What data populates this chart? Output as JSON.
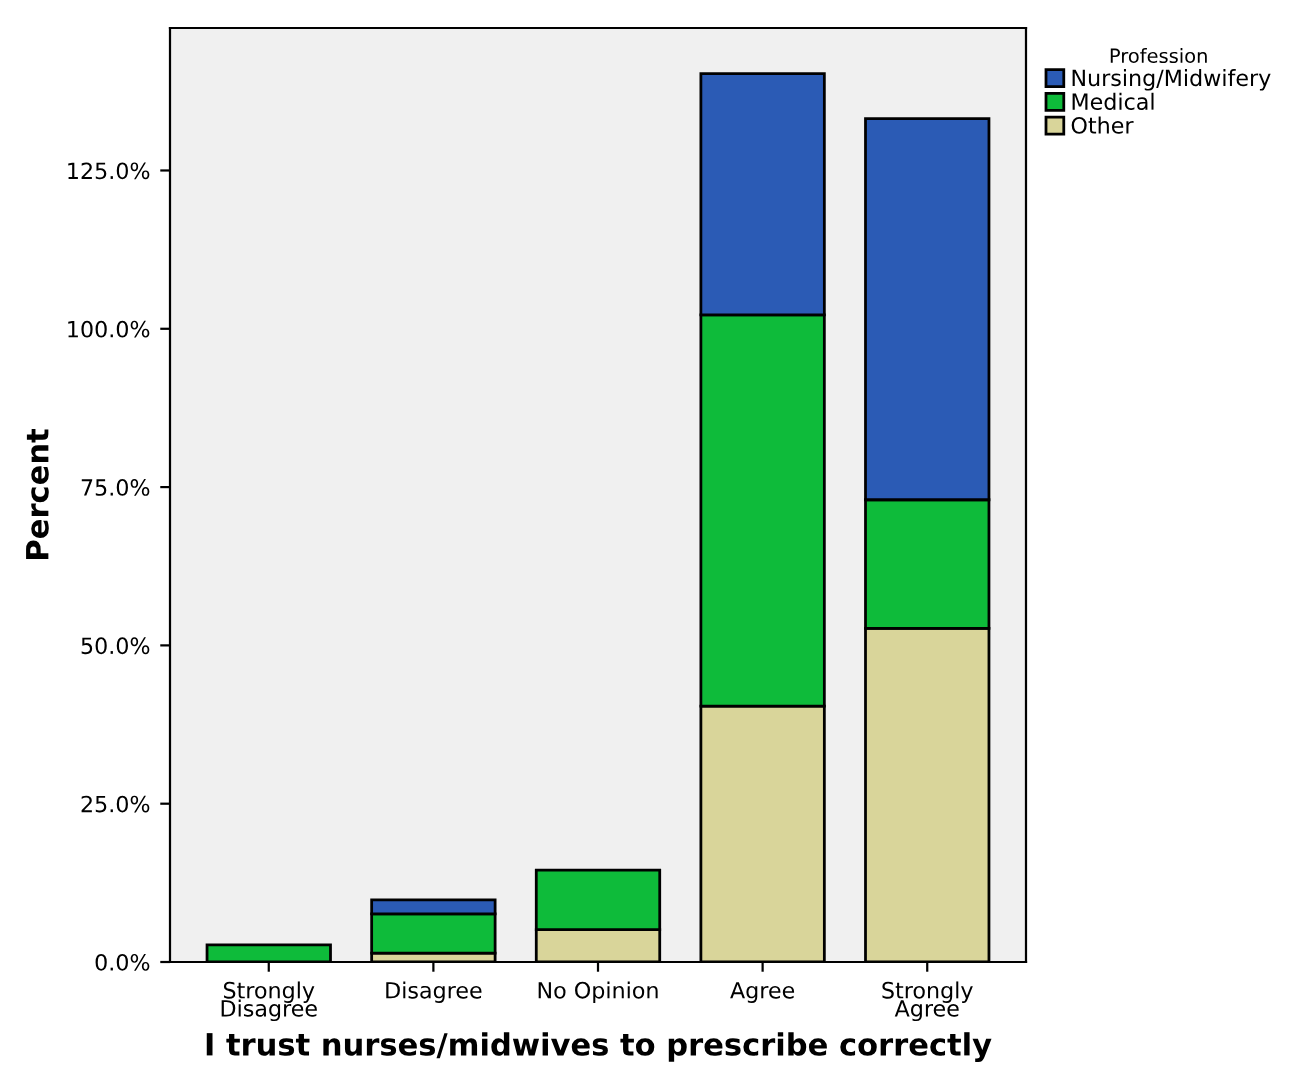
{
  "chart_data": {
    "type": "bar",
    "stacked": true,
    "xlabel": "I trust nurses/midwives to prescribe correctly",
    "ylabel": "Percent",
    "legend_title": "Profession",
    "categories": [
      "Strongly\nDisagree",
      "Disagree",
      "No Opinion",
      "Agree",
      "Strongly\nAgree"
    ],
    "series": [
      {
        "name": "Other",
        "color": "#d9d59a",
        "values": [
          null,
          1.4,
          5.1,
          40.4,
          52.7
        ]
      },
      {
        "name": "Medical",
        "color": "#0ebb3a",
        "values": [
          2.7,
          6.2,
          9.4,
          61.8,
          20.3
        ]
      },
      {
        "name": "Nursing/Midwifery",
        "color": "#2b5bb5",
        "values": [
          null,
          2.2,
          null,
          38.1,
          60.2
        ]
      }
    ],
    "ylim": [
      0,
      147.5
    ],
    "yticks": [
      {
        "value": 0,
        "label": "0.0%"
      },
      {
        "value": 25,
        "label": "25.0%"
      },
      {
        "value": 50,
        "label": "50.0%"
      },
      {
        "value": 75,
        "label": "75.0%"
      },
      {
        "value": 100,
        "label": "100.0%"
      },
      {
        "value": 125,
        "label": "125.0%"
      }
    ],
    "grid": false,
    "legend": "top right"
  }
}
